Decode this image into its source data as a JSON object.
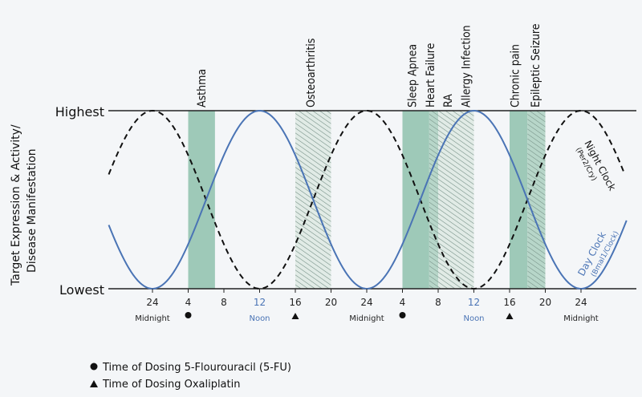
{
  "diagram": {
    "y_axis_label_line1": "Target Expression & Activity/",
    "y_axis_label_line2": "Disease Manifestation",
    "y_highest": "Highest",
    "y_lowest": "Lowest",
    "x_ticks": [
      {
        "label": "24",
        "hour": 24,
        "color": "#222222"
      },
      {
        "label": "4",
        "hour": 28,
        "color": "#222222"
      },
      {
        "label": "8",
        "hour": 32,
        "color": "#222222"
      },
      {
        "label": "12",
        "hour": 36,
        "color": "#4a74b5"
      },
      {
        "label": "16",
        "hour": 40,
        "color": "#222222"
      },
      {
        "label": "20",
        "hour": 44,
        "color": "#222222"
      },
      {
        "label": "24",
        "hour": 48,
        "color": "#222222"
      },
      {
        "label": "4",
        "hour": 52,
        "color": "#222222"
      },
      {
        "label": "8",
        "hour": 56,
        "color": "#222222"
      },
      {
        "label": "12",
        "hour": 60,
        "color": "#4a74b5"
      },
      {
        "label": "16",
        "hour": 64,
        "color": "#222222"
      },
      {
        "label": "20",
        "hour": 68,
        "color": "#222222"
      },
      {
        "label": "24",
        "hour": 72,
        "color": "#222222"
      }
    ],
    "time_labels": [
      {
        "text": "Midnight",
        "hour": 24,
        "color": "#222222"
      },
      {
        "text": "Noon",
        "hour": 36,
        "color": "#4a74b5"
      },
      {
        "text": "Midnight",
        "hour": 48,
        "color": "#222222"
      },
      {
        "text": "Noon",
        "hour": 60,
        "color": "#4a74b5"
      },
      {
        "text": "Midnight",
        "hour": 72,
        "color": "#222222"
      }
    ],
    "dose_markers": [
      {
        "shape": "circle",
        "hour": 28
      },
      {
        "shape": "triangle",
        "hour": 40
      },
      {
        "shape": "circle",
        "hour": 52
      },
      {
        "shape": "triangle",
        "hour": 64
      }
    ],
    "bands": [
      {
        "start": 28,
        "end": 31,
        "pattern": "solid"
      },
      {
        "start": 40,
        "end": 44,
        "pattern": "hatch"
      },
      {
        "start": 52,
        "end": 55,
        "pattern": "solid"
      },
      {
        "start": 55,
        "end": 56,
        "pattern": "mixed"
      },
      {
        "start": 56,
        "end": 60,
        "pattern": "hatch"
      },
      {
        "start": 64,
        "end": 66,
        "pattern": "solid"
      },
      {
        "start": 66,
        "end": 68,
        "pattern": "mixed"
      }
    ],
    "disease_labels": [
      {
        "text": "Asthma",
        "hour": 29.4
      },
      {
        "text": "Osteoarthritis",
        "hour": 41.6
      },
      {
        "text": "Sleep Apnea",
        "hour": 53.0
      },
      {
        "text": "Heart Failure",
        "hour": 55.0
      },
      {
        "text": "RA",
        "hour": 57.0
      },
      {
        "text": "Allergy  Infection",
        "hour": 59.0
      },
      {
        "text": "Chronic pain",
        "hour": 64.5
      },
      {
        "text": "Epileptic Seizure",
        "hour": 66.8
      }
    ],
    "day_clock_label": "Day Clock",
    "day_clock_sub": "(Bmal1/Clock)",
    "night_clock_label": "Night Clock",
    "night_clock_sub": "(Per2/Cry)",
    "colors": {
      "day_curve": "#4a74b5",
      "night_curve": "#111111",
      "band_fill": "#9ec9b8",
      "hatch_line": "#6f8a80",
      "axis": "#222222"
    },
    "legend": [
      {
        "symbol": "circle",
        "text": "Time of Dosing 5-Flourouracil (5-FU)"
      },
      {
        "symbol": "triangle",
        "text": "Time of Dosing Oxaliplatin"
      }
    ]
  }
}
